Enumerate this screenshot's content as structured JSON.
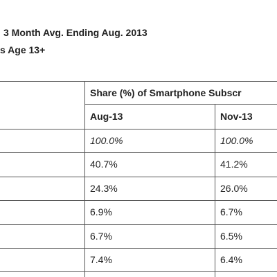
{
  "header": {
    "title": "3 Month Avg. Ending Aug. 2013",
    "subtitle": "s Age 13+"
  },
  "table": {
    "group_header": "Share (%) of Smartphone Subscr",
    "columns": [
      "Aug-13",
      "Nov-13"
    ],
    "rows": [
      [
        "100.0%",
        "100.0%"
      ],
      [
        "40.7%",
        "41.2%"
      ],
      [
        "24.3%",
        "26.0%"
      ],
      [
        "6.9%",
        "6.7%"
      ],
      [
        "6.7%",
        "6.5%"
      ],
      [
        "7.4%",
        "6.4%"
      ]
    ]
  }
}
